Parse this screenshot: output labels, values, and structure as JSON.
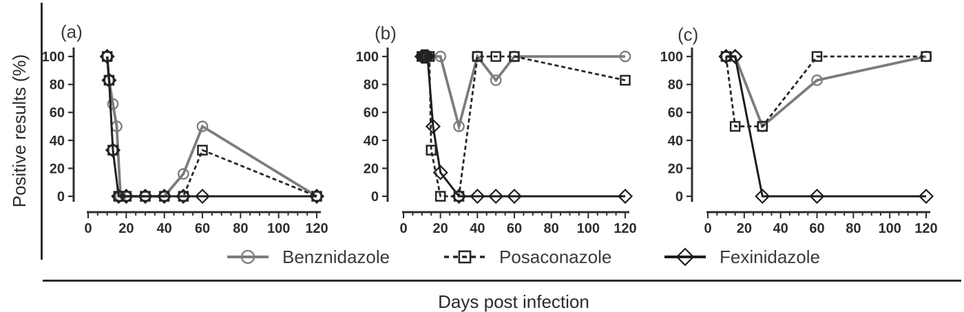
{
  "figure": {
    "y_axis_title": "Positive results (%)",
    "x_axis_title": "Days post infection"
  },
  "legend": {
    "items": [
      {
        "label": "Benznidazole"
      },
      {
        "label": "Posaconazole"
      },
      {
        "label": "Fexinidazole"
      }
    ]
  },
  "axes": {
    "x_ticks": [
      0,
      20,
      40,
      60,
      80,
      100,
      120
    ],
    "y_ticks": [
      0,
      20,
      40,
      60,
      80,
      100
    ],
    "x_minor_step": 5,
    "xlim": [
      0,
      120
    ],
    "ylim": [
      0,
      100
    ]
  },
  "colors": {
    "benznidazole": "#7c7c7c",
    "posaconazole": "#262626",
    "fexinidazole": "#1c1c1c",
    "axis": "#2e2e2e"
  },
  "chart_data": [
    {
      "type": "line",
      "panel_label": "(a)",
      "xlabel": "Days post infection",
      "ylabel": "Positive results (%)",
      "xlim": [
        0,
        120
      ],
      "ylim": [
        0,
        100
      ],
      "series": [
        {
          "name": "Benznidazole",
          "marker": "circle",
          "line": "solid",
          "color": "#7c7c7c",
          "points": [
            [
              10,
              100
            ],
            [
              11,
              83
            ],
            [
              13,
              66
            ],
            [
              15,
              50
            ],
            [
              17,
              0
            ],
            [
              20,
              0
            ],
            [
              30,
              0
            ],
            [
              40,
              0
            ],
            [
              50,
              16
            ],
            [
              60,
              50
            ],
            [
              120,
              0
            ]
          ]
        },
        {
          "name": "Posaconazole",
          "marker": "square",
          "line": "dashed",
          "color": "#262626",
          "points": [
            [
              10,
              100
            ],
            [
              11,
              83
            ],
            [
              13,
              33
            ],
            [
              16,
              0
            ],
            [
              20,
              0
            ],
            [
              30,
              0
            ],
            [
              40,
              0
            ],
            [
              50,
              0
            ],
            [
              60,
              33
            ],
            [
              120,
              0
            ]
          ]
        },
        {
          "name": "Fexinidazole",
          "marker": "diamond",
          "line": "solid",
          "color": "#1c1c1c",
          "points": [
            [
              10,
              100
            ],
            [
              11,
              83
            ],
            [
              13,
              33
            ],
            [
              16,
              0
            ],
            [
              20,
              0
            ],
            [
              30,
              0
            ],
            [
              40,
              0
            ],
            [
              50,
              0
            ],
            [
              60,
              0
            ],
            [
              120,
              0
            ]
          ]
        }
      ]
    },
    {
      "type": "line",
      "panel_label": "(b)",
      "xlabel": "Days post infection",
      "ylabel": "Positive results (%)",
      "xlim": [
        0,
        120
      ],
      "ylim": [
        0,
        100
      ],
      "series": [
        {
          "name": "Benznidazole",
          "marker": "circle",
          "line": "solid",
          "color": "#7c7c7c",
          "points": [
            [
              10,
              100
            ],
            [
              12,
              100
            ],
            [
              14,
              100
            ],
            [
              20,
              100
            ],
            [
              30,
              50
            ],
            [
              40,
              100
            ],
            [
              50,
              83
            ],
            [
              60,
              100
            ],
            [
              120,
              100
            ]
          ]
        },
        {
          "name": "Posaconazole",
          "marker": "square",
          "line": "dashed",
          "color": "#262626",
          "points": [
            [
              10,
              100
            ],
            [
              12,
              100
            ],
            [
              14,
              100
            ],
            [
              15,
              33
            ],
            [
              20,
              0
            ],
            [
              30,
              0
            ],
            [
              40,
              100
            ],
            [
              50,
              100
            ],
            [
              60,
              100
            ],
            [
              120,
              83
            ]
          ]
        },
        {
          "name": "Fexinidazole",
          "marker": "diamond",
          "line": "solid",
          "color": "#1c1c1c",
          "points": [
            [
              10,
              100
            ],
            [
              11,
              100
            ],
            [
              12,
              100
            ],
            [
              13,
              100
            ],
            [
              16,
              50
            ],
            [
              20,
              17
            ],
            [
              30,
              0
            ],
            [
              40,
              0
            ],
            [
              50,
              0
            ],
            [
              60,
              0
            ],
            [
              120,
              0
            ]
          ]
        }
      ]
    },
    {
      "type": "line",
      "panel_label": "(c)",
      "xlabel": "Days post infection",
      "ylabel": "Positive results (%)",
      "xlim": [
        0,
        120
      ],
      "ylim": [
        0,
        100
      ],
      "series": [
        {
          "name": "Benznidazole",
          "marker": "circle",
          "line": "solid",
          "color": "#7c7c7c",
          "points": [
            [
              10,
              100
            ],
            [
              15,
              100
            ],
            [
              30,
              50
            ],
            [
              60,
              83
            ],
            [
              120,
              100
            ]
          ]
        },
        {
          "name": "Posaconazole",
          "marker": "square",
          "line": "dashed",
          "color": "#262626",
          "points": [
            [
              10,
              100
            ],
            [
              15,
              50
            ],
            [
              30,
              50
            ],
            [
              60,
              100
            ],
            [
              120,
              100
            ]
          ]
        },
        {
          "name": "Fexinidazole",
          "marker": "diamond",
          "line": "solid",
          "color": "#1c1c1c",
          "points": [
            [
              10,
              100
            ],
            [
              15,
              100
            ],
            [
              30,
              0
            ],
            [
              60,
              0
            ],
            [
              120,
              0
            ]
          ]
        }
      ]
    }
  ]
}
